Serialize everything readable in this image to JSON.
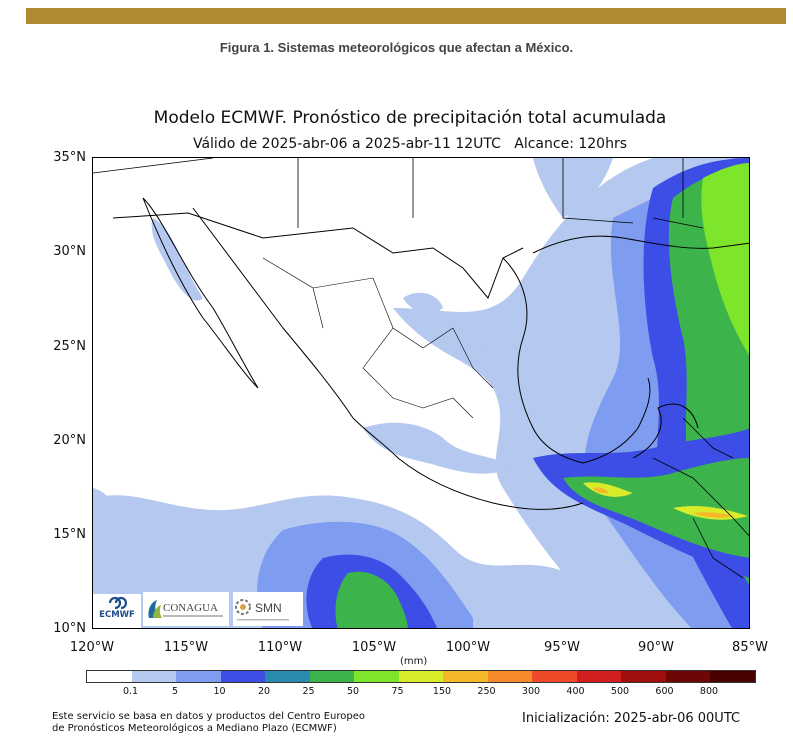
{
  "page": {
    "top_bar_color": "#b08a32",
    "caption": "Figura 1. Sistemas meteorológicos que afectan a México."
  },
  "map": {
    "title": "Modelo ECMWF. Pronóstico de precipitación total acumulada",
    "subtitle": "Válido de 2025-abr-06 a 2025-abr-11 12UTC   Alcance: 120hrs",
    "lat_labels": [
      "35°N",
      "30°N",
      "25°N",
      "20°N",
      "15°N",
      "10°N"
    ],
    "lon_labels": [
      "120°W",
      "115°W",
      "110°W",
      "105°W",
      "100°W",
      "95°W",
      "90°W",
      "85°W"
    ],
    "extent": {
      "lon_min": -120,
      "lon_max": -85,
      "lat_min": 10,
      "lat_max": 35
    },
    "colorbar": {
      "units": "(mm)",
      "levels": [
        "0.1",
        "5",
        "10",
        "20",
        "25",
        "50",
        "75",
        "150",
        "250",
        "300",
        "400",
        "500",
        "600",
        "800"
      ],
      "colors": [
        "#ffffff",
        "#b4c8f0",
        "#7f9df0",
        "#3c4ee6",
        "#2a8ab0",
        "#3cb44b",
        "#7ee62a",
        "#d8ec2a",
        "#f5b82a",
        "#f58a2a",
        "#ee4a2a",
        "#d21e1e",
        "#a00e0e",
        "#6e0606",
        "#4a0000"
      ]
    },
    "logos": {
      "ecmwf": "ECMWF",
      "conagua": "CONAGUA",
      "smn": "SMN"
    }
  },
  "footer": {
    "source_line1": "Este servicio se basa en datos y productos del Centro Europeo",
    "source_line2": "de Pronósticos Meteorológicos a Mediano Plazo (ECMWF)",
    "init": "Inicialización: 2025-abr-06 00UTC"
  }
}
